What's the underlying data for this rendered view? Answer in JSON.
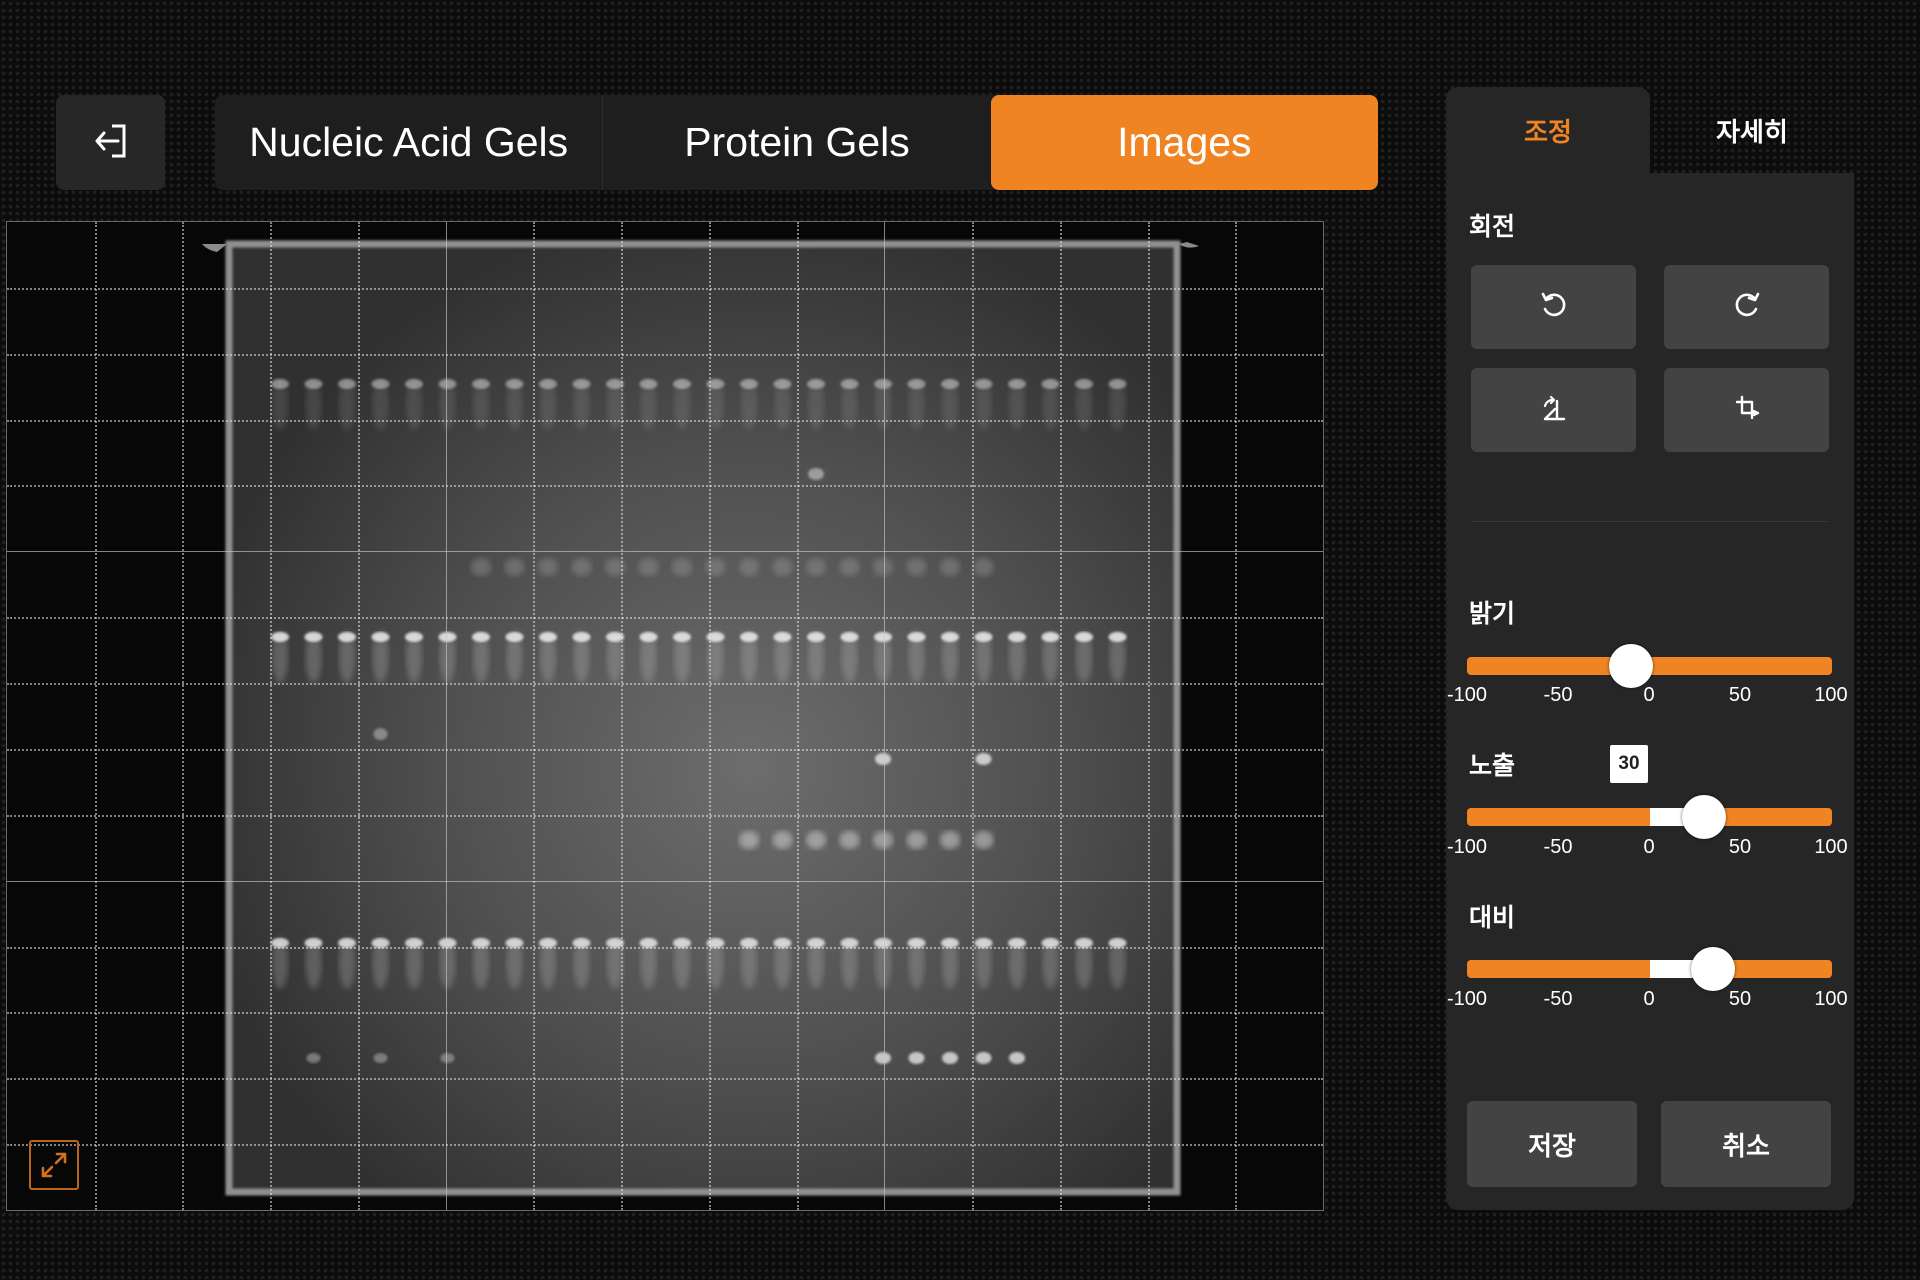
{
  "nav": {
    "back_icon": "exit-icon",
    "tabs": [
      {
        "label": "Nucleic Acid Gels",
        "active": false
      },
      {
        "label": "Protein Gels",
        "active": false
      },
      {
        "label": "Images",
        "active": true
      }
    ]
  },
  "viewer": {
    "expand_icon": "expand-icon",
    "accent_color": "#f18422"
  },
  "panel": {
    "tabs": [
      {
        "label": "조정",
        "active": true
      },
      {
        "label": "자세히",
        "active": false
      }
    ],
    "rotation": {
      "label": "회전",
      "buttons": [
        "rotate-left-icon",
        "rotate-right-icon",
        "flip-horizontal-icon",
        "flip-vertical-icon"
      ]
    },
    "sliders": [
      {
        "label": "밝기",
        "value": -10,
        "ticks": [
          "-100",
          "-50",
          "0",
          "50",
          "100"
        ]
      },
      {
        "label": "노출",
        "value": 30,
        "value_display": "30",
        "ticks": [
          "-100",
          "-50",
          "0",
          "50",
          "100"
        ]
      },
      {
        "label": "대비",
        "value": 35,
        "ticks": [
          "-100",
          "-50",
          "0",
          "50",
          "100"
        ]
      }
    ],
    "save_label": "저장",
    "cancel_label": "취소"
  }
}
